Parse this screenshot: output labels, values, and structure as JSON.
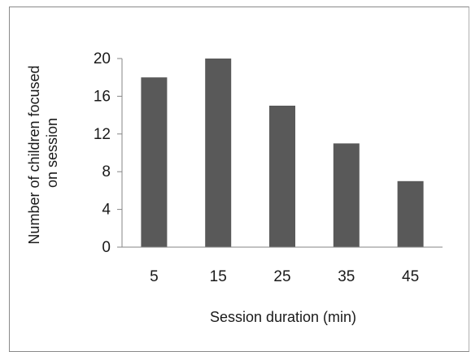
{
  "chart_data": {
    "type": "bar",
    "title": "",
    "categories": [
      "5",
      "15",
      "25",
      "35",
      "45"
    ],
    "values": [
      18,
      20,
      15,
      11,
      7
    ],
    "xlabel": "Session duration (min)",
    "ylabel_lines": [
      "Number of children focused",
      "on session"
    ],
    "ylim": [
      0,
      20
    ],
    "yticks": [
      "0",
      "4",
      "8",
      "12",
      "16",
      "20"
    ],
    "ytick_values": [
      0,
      4,
      8,
      12,
      16,
      20
    ],
    "grid": false,
    "legend": "none",
    "bar_color": "#595959",
    "axis_color": "#868686"
  }
}
